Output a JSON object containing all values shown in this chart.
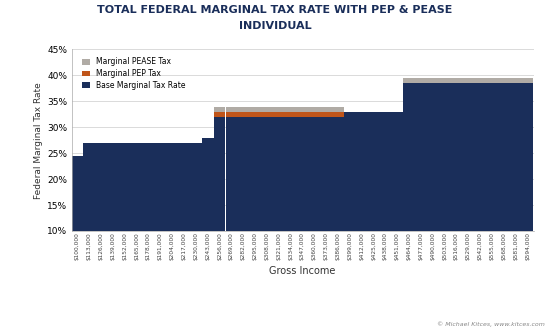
{
  "title_line1": "TOTAL FEDERAL MARGINAL TAX RATE WITH PEP & PEASE",
  "title_line2": "INDIVIDUAL",
  "xlabel": "Gross Income",
  "ylabel": "Federal Marginal Tax Rate",
  "copyright": "© Michael Kitces, www.kitces.com",
  "background_color": "#ffffff",
  "bar_color_base": "#1a2e5a",
  "bar_color_pep": "#c0551a",
  "bar_color_pease": "#b0aba5",
  "border_color": "#aaaaaa",
  "ylim": [
    0.1,
    0.45
  ],
  "yticks": [
    0.1,
    0.15,
    0.2,
    0.25,
    0.3,
    0.35,
    0.4,
    0.45
  ],
  "legend_labels": [
    "Marginal PEASE Tax",
    "Marginal PEP Tax",
    "Base Marginal Tax Rate"
  ],
  "categories": [
    "$100,000",
    "$113,000",
    "$126,000",
    "$139,000",
    "$152,000",
    "$165,000",
    "$178,000",
    "$191,000",
    "$204,000",
    "$217,000",
    "$230,000",
    "$243,000",
    "$256,000",
    "$269,000",
    "$282,000",
    "$295,000",
    "$308,000",
    "$321,000",
    "$334,000",
    "$347,000",
    "$360,000",
    "$373,000",
    "$386,000",
    "$399,000",
    "$412,000",
    "$425,000",
    "$438,000",
    "$451,000",
    "$464,000",
    "$477,000",
    "$490,000",
    "$503,000",
    "$516,000",
    "$529,000",
    "$542,000",
    "$555,000",
    "$568,000",
    "$581,000",
    "$594,000"
  ],
  "base_rates": [
    0.245,
    0.27,
    0.27,
    0.27,
    0.27,
    0.27,
    0.27,
    0.27,
    0.27,
    0.27,
    0.27,
    0.28,
    0.32,
    0.32,
    0.32,
    0.32,
    0.32,
    0.32,
    0.32,
    0.32,
    0.32,
    0.32,
    0.32,
    0.33,
    0.33,
    0.33,
    0.33,
    0.33,
    0.386,
    0.386,
    0.386,
    0.386,
    0.386,
    0.386,
    0.386,
    0.386,
    0.386,
    0.386,
    0.386
  ],
  "pep_rates": [
    0.0,
    0.0,
    0.0,
    0.0,
    0.0,
    0.0,
    0.0,
    0.0,
    0.0,
    0.0,
    0.0,
    0.0,
    0.01,
    0.01,
    0.01,
    0.01,
    0.01,
    0.01,
    0.01,
    0.01,
    0.01,
    0.01,
    0.01,
    0.0,
    0.0,
    0.0,
    0.0,
    0.0,
    0.0,
    0.0,
    0.0,
    0.0,
    0.0,
    0.0,
    0.0,
    0.0,
    0.0,
    0.0,
    0.0
  ],
  "pease_rates": [
    0.0,
    0.0,
    0.0,
    0.0,
    0.0,
    0.0,
    0.0,
    0.0,
    0.0,
    0.0,
    0.0,
    0.0,
    0.01,
    0.01,
    0.01,
    0.01,
    0.01,
    0.01,
    0.01,
    0.01,
    0.01,
    0.01,
    0.01,
    0.0,
    0.0,
    0.0,
    0.0,
    0.0,
    0.01,
    0.01,
    0.01,
    0.01,
    0.01,
    0.01,
    0.01,
    0.01,
    0.01,
    0.01,
    0.01
  ]
}
